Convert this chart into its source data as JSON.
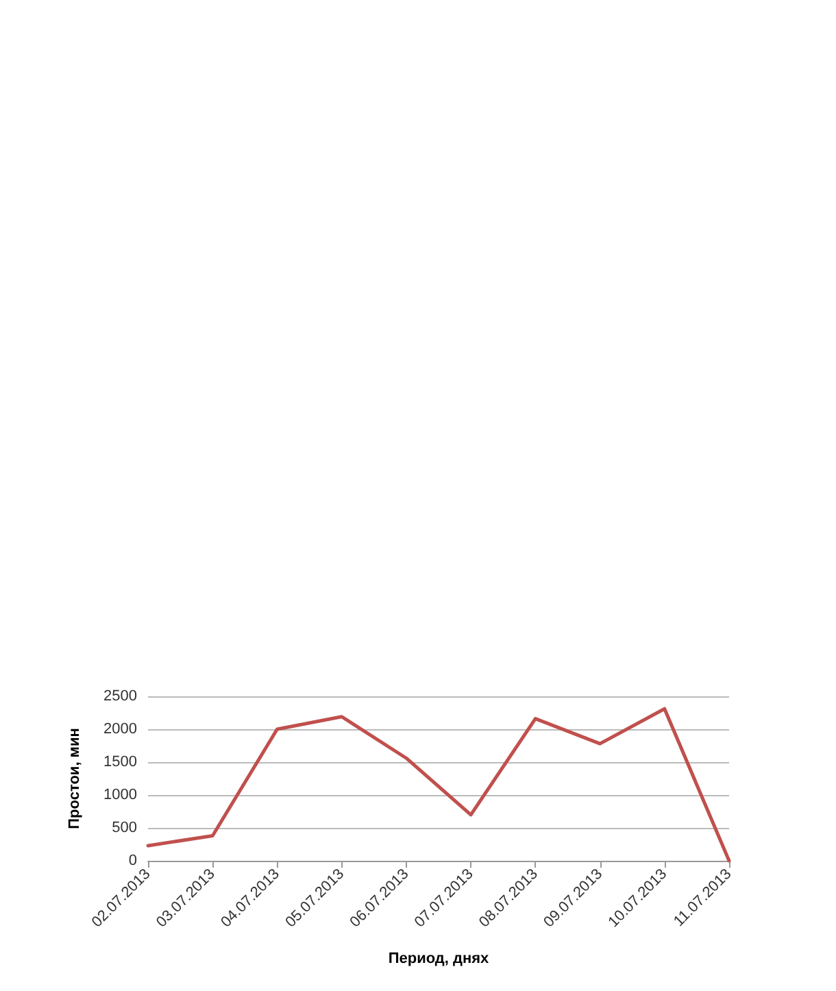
{
  "chart_data": {
    "type": "line",
    "xlabel": "Период, днях",
    "ylabel": "Простои, мин",
    "categories": [
      "02.07.2013",
      "03.07.2013",
      "04.07.2013",
      "05.07.2013",
      "06.07.2013",
      "07.07.2013",
      "08.07.2013",
      "09.07.2013",
      "10.07.2013",
      "11.07.2013"
    ],
    "series": [
      {
        "color": "#c0504d",
        "values": [
          230,
          380,
          2000,
          2190,
          1560,
          700,
          2160,
          1780,
          2310,
          0
        ]
      }
    ],
    "ylim": [
      0,
      2500
    ],
    "yticks": [
      0,
      500,
      1000,
      1500,
      2000,
      2500
    ],
    "grid": "y",
    "marker": "none",
    "line_style": "solid"
  }
}
